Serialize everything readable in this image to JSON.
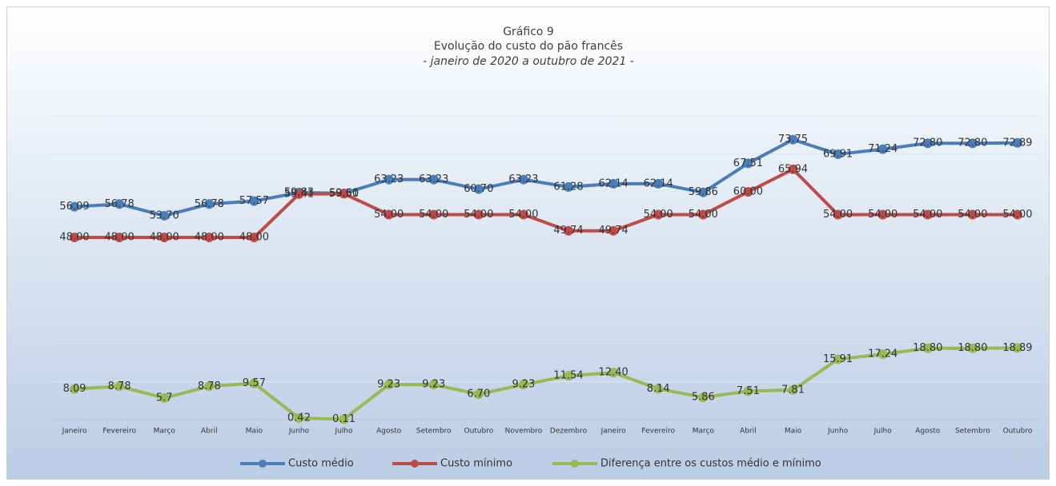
{
  "chart_data": {
    "type": "line",
    "title": [
      "Gráfico 9",
      "Evolução do custo do pão francês",
      "- janeiro de 2020 a outubro de 2021 -"
    ],
    "categories": [
      "Janeiro",
      "Fevereiro",
      "Março",
      "Abril",
      "Maio",
      "Junho",
      "Julho",
      "Agosto",
      "Setembro",
      "Outubro",
      "Novembro",
      "Dezembro",
      "Janeiro",
      "Fevereiro",
      "Março",
      "Abril",
      "Maio",
      "Junho",
      "Julho",
      "Agosto",
      "Setembro",
      "Outubro"
    ],
    "ylim": [
      0,
      80
    ],
    "yticks": [
      0,
      10,
      20,
      30,
      40,
      50,
      60,
      70,
      80
    ],
    "grid": true,
    "legend": "bottom",
    "series": [
      {
        "name": "Custo médio",
        "color": "#4a7ebb",
        "values": [
          56.09,
          56.78,
          53.7,
          56.78,
          57.57,
          59.83,
          59.61,
          63.23,
          63.23,
          60.7,
          63.23,
          61.28,
          62.14,
          62.14,
          59.86,
          67.51,
          73.75,
          69.91,
          71.24,
          72.8,
          72.8,
          72.89
        ],
        "value_labels": [
          "56.09",
          "56.78",
          "53.70",
          "56.78",
          "57.57",
          "59.83",
          "59.61",
          "63.23",
          "63.23",
          "60.70",
          "63.23",
          "61.28",
          "62.14",
          "62.14",
          "59.86",
          "67.51",
          "73.75",
          "69.91",
          "71.24",
          "72.80",
          "72.80",
          "72.89"
        ]
      },
      {
        "name": "Custo mínimo",
        "color": "#be4b48",
        "values": [
          48,
          48,
          48,
          48,
          48,
          59.41,
          59.5,
          54,
          54,
          54,
          54,
          49.74,
          49.74,
          54,
          54,
          60,
          65.94,
          54,
          54,
          54,
          54,
          54
        ],
        "value_labels": [
          "48.00",
          "48.00",
          "48.00",
          "48.00",
          "48.00",
          "59.41",
          "59.50",
          "54.00",
          "54.00",
          "54.00",
          "54.00",
          "49.74",
          "49.74",
          "54.00",
          "54.00",
          "60.00",
          "65.94",
          "54.00",
          "54.00",
          "54.00",
          "54.00",
          "54.00"
        ]
      },
      {
        "name": "Diferença entre os custos médio e mínimo",
        "color": "#98b954",
        "values": [
          8.09,
          8.78,
          5.7,
          8.78,
          9.57,
          0.42,
          0.11,
          9.23,
          9.23,
          6.7,
          9.23,
          11.54,
          12.4,
          8.14,
          5.86,
          7.51,
          7.81,
          15.91,
          17.24,
          18.8,
          18.8,
          18.89
        ],
        "value_labels": [
          "8.09",
          "8.78",
          "5.7",
          "8.78",
          "9.57",
          "0.42",
          "0.11",
          "9.23",
          "9.23",
          "6.70",
          "9.23",
          "11.54",
          "12.40",
          "8.14",
          "5.86",
          "7.51",
          "7.81",
          "15.91",
          "17.24",
          "18.80",
          "18.80",
          "18.89"
        ]
      }
    ]
  }
}
